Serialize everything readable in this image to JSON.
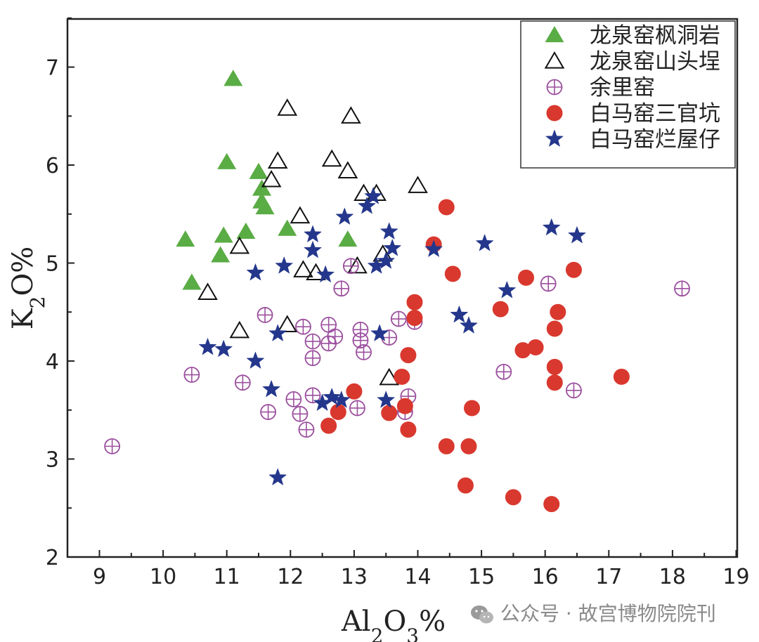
{
  "chart_data": {
    "type": "scatter",
    "title": "",
    "xlabel": "Al2O3%",
    "ylabel": "K2O%",
    "xlim": [
      8.5,
      19
    ],
    "ylim": [
      2,
      7.5
    ],
    "x_ticks": [
      "9",
      "10",
      "11",
      "12",
      "13",
      "14",
      "15",
      "16",
      "17",
      "18",
      "19"
    ],
    "y_ticks": [
      "2",
      "3",
      "4",
      "5",
      "6",
      "7"
    ],
    "grid": false,
    "legend_position": "top-right",
    "series": [
      {
        "name": "龙泉窑枫洞岩",
        "marker": "triangle-filled",
        "color": "#5aac44",
        "points": [
          [
            11.1,
            6.88
          ],
          [
            11.0,
            6.03
          ],
          [
            11.5,
            5.93
          ],
          [
            11.55,
            5.76
          ],
          [
            11.55,
            5.63
          ],
          [
            11.6,
            5.57
          ],
          [
            11.3,
            5.32
          ],
          [
            11.95,
            5.35
          ],
          [
            10.95,
            5.28
          ],
          [
            10.35,
            5.24
          ],
          [
            12.9,
            5.24
          ],
          [
            10.9,
            5.08
          ],
          [
            10.45,
            4.8
          ]
        ]
      },
      {
        "name": "龙泉窑山头埕",
        "marker": "triangle-open",
        "color": "#111111",
        "points": [
          [
            11.95,
            6.58
          ],
          [
            12.95,
            6.5
          ],
          [
            11.8,
            6.04
          ],
          [
            12.65,
            6.06
          ],
          [
            12.9,
            5.94
          ],
          [
            11.7,
            5.85
          ],
          [
            13.15,
            5.71
          ],
          [
            13.35,
            5.71
          ],
          [
            14.0,
            5.79
          ],
          [
            12.15,
            5.48
          ],
          [
            11.2,
            5.17
          ],
          [
            13.45,
            5.09
          ],
          [
            12.2,
            4.93
          ],
          [
            12.4,
            4.9
          ],
          [
            13.05,
            4.97
          ],
          [
            10.7,
            4.7
          ],
          [
            11.2,
            4.31
          ],
          [
            11.95,
            4.37
          ],
          [
            13.55,
            3.83
          ]
        ]
      },
      {
        "name": "余里窑",
        "marker": "circle-plus",
        "color": "#9b4f9e",
        "points": [
          [
            12.95,
            4.97
          ],
          [
            12.8,
            4.74
          ],
          [
            16.05,
            4.79
          ],
          [
            18.15,
            4.74
          ],
          [
            11.6,
            4.47
          ],
          [
            12.2,
            4.35
          ],
          [
            12.6,
            4.37
          ],
          [
            13.1,
            4.32
          ],
          [
            13.7,
            4.43
          ],
          [
            13.95,
            4.4
          ],
          [
            12.35,
            4.2
          ],
          [
            12.6,
            4.18
          ],
          [
            12.7,
            4.25
          ],
          [
            13.1,
            4.21
          ],
          [
            13.55,
            4.24
          ],
          [
            13.15,
            4.09
          ],
          [
            12.35,
            4.03
          ],
          [
            10.45,
            3.86
          ],
          [
            11.25,
            3.78
          ],
          [
            15.35,
            3.89
          ],
          [
            16.45,
            3.7
          ],
          [
            12.05,
            3.61
          ],
          [
            12.35,
            3.65
          ],
          [
            13.85,
            3.64
          ],
          [
            11.65,
            3.48
          ],
          [
            12.15,
            3.46
          ],
          [
            13.05,
            3.52
          ],
          [
            13.8,
            3.48
          ],
          [
            12.25,
            3.3
          ],
          [
            9.2,
            3.13
          ]
        ]
      },
      {
        "name": "白马窑三官坑",
        "marker": "circle-filled",
        "color": "#d9382e",
        "points": [
          [
            14.45,
            5.57
          ],
          [
            14.25,
            5.19
          ],
          [
            14.55,
            4.89
          ],
          [
            15.7,
            4.85
          ],
          [
            16.45,
            4.93
          ],
          [
            13.95,
            4.6
          ],
          [
            13.95,
            4.44
          ],
          [
            15.3,
            4.53
          ],
          [
            16.2,
            4.5
          ],
          [
            16.15,
            4.33
          ],
          [
            13.85,
            4.06
          ],
          [
            15.65,
            4.11
          ],
          [
            15.85,
            4.14
          ],
          [
            16.15,
            3.94
          ],
          [
            13.75,
            3.84
          ],
          [
            16.15,
            3.78
          ],
          [
            17.2,
            3.84
          ],
          [
            13.0,
            3.69
          ],
          [
            13.55,
            3.47
          ],
          [
            13.8,
            3.54
          ],
          [
            12.75,
            3.48
          ],
          [
            14.85,
            3.52
          ],
          [
            12.6,
            3.34
          ],
          [
            13.85,
            3.3
          ],
          [
            14.45,
            3.13
          ],
          [
            14.8,
            3.13
          ],
          [
            14.75,
            2.73
          ],
          [
            15.5,
            2.61
          ],
          [
            16.1,
            2.54
          ]
        ]
      },
      {
        "name": "白马窑烂屋仔",
        "marker": "star",
        "color": "#24378c",
        "points": [
          [
            13.3,
            5.68
          ],
          [
            13.2,
            5.58
          ],
          [
            12.85,
            5.47
          ],
          [
            12.35,
            5.29
          ],
          [
            13.55,
            5.32
          ],
          [
            12.35,
            5.13
          ],
          [
            13.6,
            5.15
          ],
          [
            14.25,
            5.14
          ],
          [
            15.05,
            5.2
          ],
          [
            16.1,
            5.36
          ],
          [
            16.5,
            5.28
          ],
          [
            11.9,
            4.97
          ],
          [
            11.45,
            4.9
          ],
          [
            12.55,
            4.88
          ],
          [
            13.35,
            4.97
          ],
          [
            13.5,
            5.02
          ],
          [
            15.4,
            4.72
          ],
          [
            14.65,
            4.47
          ],
          [
            14.8,
            4.36
          ],
          [
            11.8,
            4.28
          ],
          [
            13.4,
            4.28
          ],
          [
            10.7,
            4.14
          ],
          [
            10.95,
            4.12
          ],
          [
            11.45,
            4.0
          ],
          [
            11.7,
            3.71
          ],
          [
            12.5,
            3.57
          ],
          [
            12.65,
            3.63
          ],
          [
            12.8,
            3.6
          ],
          [
            13.5,
            3.6
          ],
          [
            11.8,
            2.81
          ]
        ]
      }
    ]
  },
  "watermark": {
    "icon": "wechat-icon",
    "text": "公众号 · 故宫博物院院刊"
  }
}
